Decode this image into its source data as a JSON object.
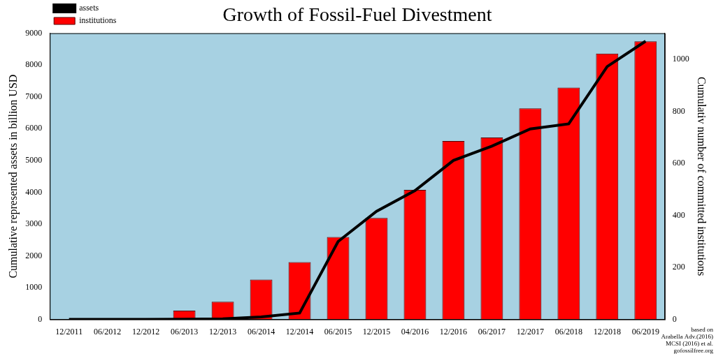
{
  "chart_data": {
    "type": "bar",
    "title": "Growth of Fossil-Fuel Divestment",
    "categories": [
      "12/2011",
      "06/2012",
      "12/2012",
      "06/2013",
      "12/2013",
      "06/2014",
      "12/2014",
      "06/2015",
      "12/2015",
      "04/2016",
      "12/2016",
      "06/2017",
      "12/2017",
      "06/2018",
      "12/2018",
      "06/2019"
    ],
    "series": [
      {
        "name": "institutions",
        "type": "bar",
        "color": "#ff0000",
        "axis": "y2",
        "values": [
          0,
          0,
          0,
          34,
          68,
          153,
          220,
          317,
          390,
          498,
          686,
          699,
          811,
          891,
          1022,
          1069
        ]
      },
      {
        "name": "assets",
        "type": "line",
        "color": "#000000",
        "values": [
          0,
          0,
          0,
          10,
          20,
          80,
          200,
          2450,
          3400,
          4050,
          5000,
          5450,
          5990,
          6150,
          7950,
          8750
        ]
      }
    ],
    "y_label": "Cumulative represented assets in billion USD",
    "y2_label": "Cumulativ number of committed institutions",
    "ylim": [
      0,
      9000
    ],
    "yticks": [
      0,
      1000,
      2000,
      3000,
      4000,
      5000,
      6000,
      7000,
      8000,
      9000
    ],
    "y2lim": [
      0,
      1100
    ],
    "y2ticks": [
      0,
      200,
      400,
      600,
      800,
      1000
    ],
    "grid": false,
    "legend": "top-left",
    "annotations": [
      "based on",
      "Arabella Adv.(2016)",
      "MCSI (2016) et al.",
      "gofossilfree.org"
    ]
  }
}
